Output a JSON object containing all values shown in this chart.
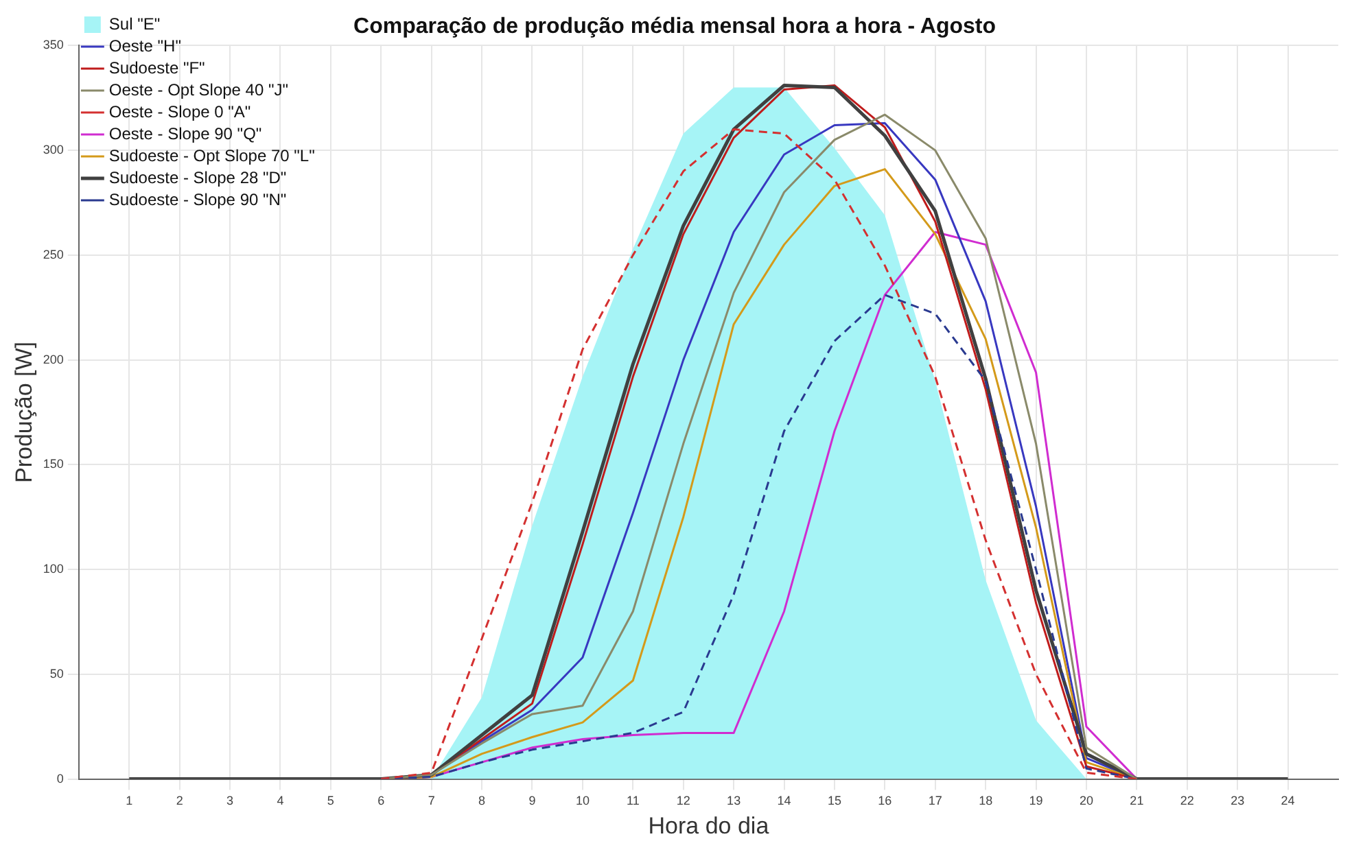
{
  "chart_data": {
    "type": "line",
    "title": "Comparação de produção média mensal hora a hora - Agosto",
    "xlabel": "Hora do dia",
    "ylabel": "Produção [W]",
    "x": [
      1,
      2,
      3,
      4,
      5,
      6,
      7,
      8,
      9,
      10,
      11,
      12,
      13,
      14,
      15,
      16,
      17,
      18,
      19,
      20,
      21,
      22,
      23,
      24
    ],
    "series": [
      {
        "name": "Sul \"E\"",
        "type": "area",
        "color": "#a6f4f6",
        "values": [
          null,
          null,
          null,
          null,
          null,
          null,
          0,
          39,
          121,
          192,
          253,
          308,
          330,
          330,
          301,
          269,
          190,
          95,
          28,
          0,
          null,
          null,
          null,
          null
        ]
      },
      {
        "name": "Oeste \"H\"",
        "color": "#3838c0",
        "values": [
          null,
          null,
          null,
          null,
          null,
          0,
          2,
          18,
          33,
          58,
          127,
          200,
          261,
          298,
          312,
          313,
          286,
          228,
          130,
          10,
          0,
          null,
          null,
          null
        ]
      },
      {
        "name": "Sudoeste \"F\"",
        "color": "#c01c1c",
        "values": [
          null,
          null,
          null,
          null,
          null,
          0,
          2,
          19,
          36,
          112,
          192,
          260,
          306,
          329,
          331,
          311,
          266,
          186,
          84,
          6,
          0,
          null,
          null,
          null
        ]
      },
      {
        "name": "Oeste - Opt Slope 40 \"J\"",
        "color": "#8a8a6a",
        "values": [
          null,
          null,
          null,
          null,
          null,
          0,
          2,
          17,
          31,
          35,
          80,
          160,
          232,
          280,
          305,
          317,
          300,
          258,
          160,
          15,
          0,
          null,
          null,
          null
        ]
      },
      {
        "name": "Oeste - Slope 0 \"A\"",
        "color": "#d43030",
        "line_style": "dashed",
        "values": [
          null,
          null,
          null,
          null,
          null,
          0,
          3,
          67,
          132,
          205,
          250,
          290,
          310,
          308,
          286,
          245,
          192,
          114,
          50,
          3,
          0,
          null,
          null,
          null
        ]
      },
      {
        "name": "Oeste - Slope 90 \"Q\"",
        "color": "#d02cd0",
        "values": [
          null,
          null,
          null,
          null,
          null,
          0,
          1,
          8,
          15,
          19,
          21,
          22,
          22,
          80,
          166,
          231,
          261,
          255,
          194,
          25,
          0,
          null,
          null,
          null
        ]
      },
      {
        "name": "Sudoeste - Opt Slope 70 \"L\"",
        "color": "#d49a1a",
        "values": [
          null,
          null,
          null,
          null,
          null,
          0,
          1,
          12,
          20,
          27,
          47,
          125,
          217,
          255,
          283,
          291,
          260,
          210,
          120,
          8,
          0,
          null,
          null,
          null
        ]
      },
      {
        "name": "Sudoeste - Slope 28 \"D\"",
        "color": "#404040",
        "values": [
          0,
          0,
          0,
          0,
          0,
          0,
          2,
          21,
          40,
          118,
          198,
          264,
          310,
          331,
          330,
          307,
          271,
          191,
          90,
          12,
          0,
          0,
          0,
          0
        ]
      },
      {
        "name": "Sudoeste - Slope 90 \"N\"",
        "color": "#2a3a90",
        "line_style": "dashed",
        "values": [
          null,
          null,
          null,
          null,
          null,
          0,
          1,
          8,
          14,
          18,
          22,
          32,
          88,
          166,
          209,
          231,
          222,
          190,
          100,
          5,
          0,
          null,
          null,
          null
        ]
      }
    ],
    "xlim": [
      0,
      25
    ],
    "xticks": [
      1,
      2,
      3,
      4,
      5,
      6,
      7,
      8,
      9,
      10,
      11,
      12,
      13,
      14,
      15,
      16,
      17,
      18,
      19,
      20,
      21,
      22,
      23,
      24
    ],
    "ylim": [
      0,
      350
    ],
    "yticks": [
      0,
      50,
      100,
      150,
      200,
      250,
      300,
      350
    ],
    "grid": true,
    "legend": "top left",
    "marker": "none",
    "line_style": "solid"
  }
}
